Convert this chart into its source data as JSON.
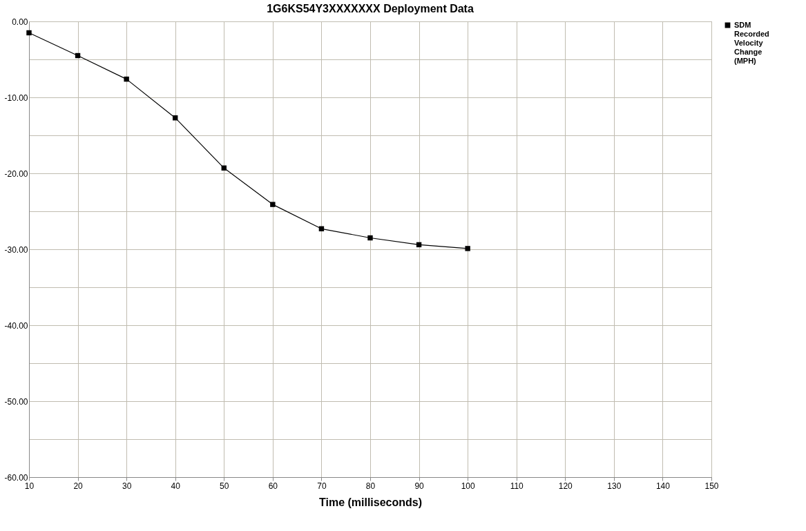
{
  "chart_data": {
    "type": "line",
    "title": "1G6KS54Y3XXXXXXX  Deployment Data",
    "xlabel": "Time (milliseconds)",
    "x": [
      10,
      20,
      30,
      40,
      50,
      60,
      70,
      80,
      90,
      100
    ],
    "series": [
      {
        "name": "SDM Recorded Velocity Change (MPH)",
        "color": "#000000",
        "values": [
          -1.5,
          -4.5,
          -7.6,
          -12.7,
          -19.3,
          -24.1,
          -27.3,
          -28.5,
          -29.4,
          -29.9
        ]
      }
    ],
    "xlim": [
      10,
      150
    ],
    "xticks": [
      10,
      20,
      30,
      40,
      50,
      60,
      70,
      80,
      90,
      100,
      110,
      120,
      130,
      140,
      150
    ],
    "ylim": [
      -60,
      0
    ],
    "yticks": [
      {
        "value": 0,
        "label": "0.00"
      },
      {
        "value": -5,
        "label": null
      },
      {
        "value": -10,
        "label": "-10.00"
      },
      {
        "value": -15,
        "label": null
      },
      {
        "value": -20,
        "label": "-20.00"
      },
      {
        "value": -25,
        "label": null
      },
      {
        "value": -30,
        "label": "-30.00"
      },
      {
        "value": -35,
        "label": null
      },
      {
        "value": -40,
        "label": "-40.00"
      },
      {
        "value": -45,
        "label": null
      },
      {
        "value": -50,
        "label": "-50.00"
      },
      {
        "value": -55,
        "label": null
      },
      {
        "value": -60,
        "label": "-60.00"
      }
    ],
    "grid": true,
    "legend": "top right",
    "marker": "square",
    "line_style": "solid"
  }
}
